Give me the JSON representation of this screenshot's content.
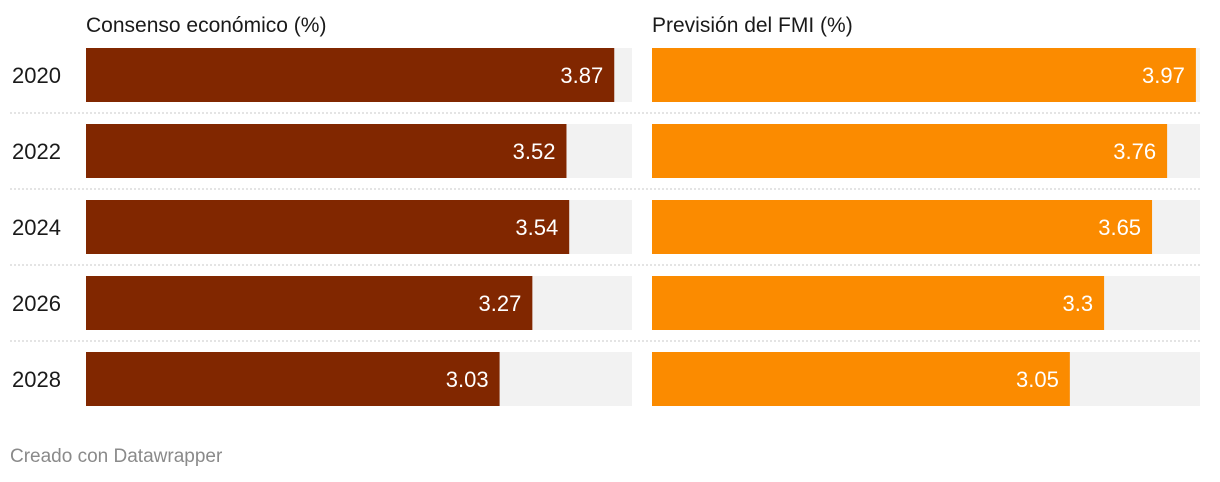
{
  "chart_data": {
    "type": "bar",
    "orientation": "horizontal",
    "layout": "small-multiples",
    "categories": [
      "2020",
      "2022",
      "2024",
      "2026",
      "2028"
    ],
    "xlim": [
      0,
      4.0
    ],
    "grid": false,
    "legend": "none",
    "series": [
      {
        "name": "Consenso económico (%)",
        "values": [
          3.87,
          3.52,
          3.54,
          3.27,
          3.03
        ],
        "color": "#812700"
      },
      {
        "name": "Previsión del FMI (%)",
        "values": [
          3.97,
          3.76,
          3.65,
          3.3,
          3.05
        ],
        "color": "#fb8b00"
      }
    ],
    "background_color": "#f2f2f2",
    "label_color": "#ffffff"
  },
  "footer": "Creado con Datawrapper"
}
